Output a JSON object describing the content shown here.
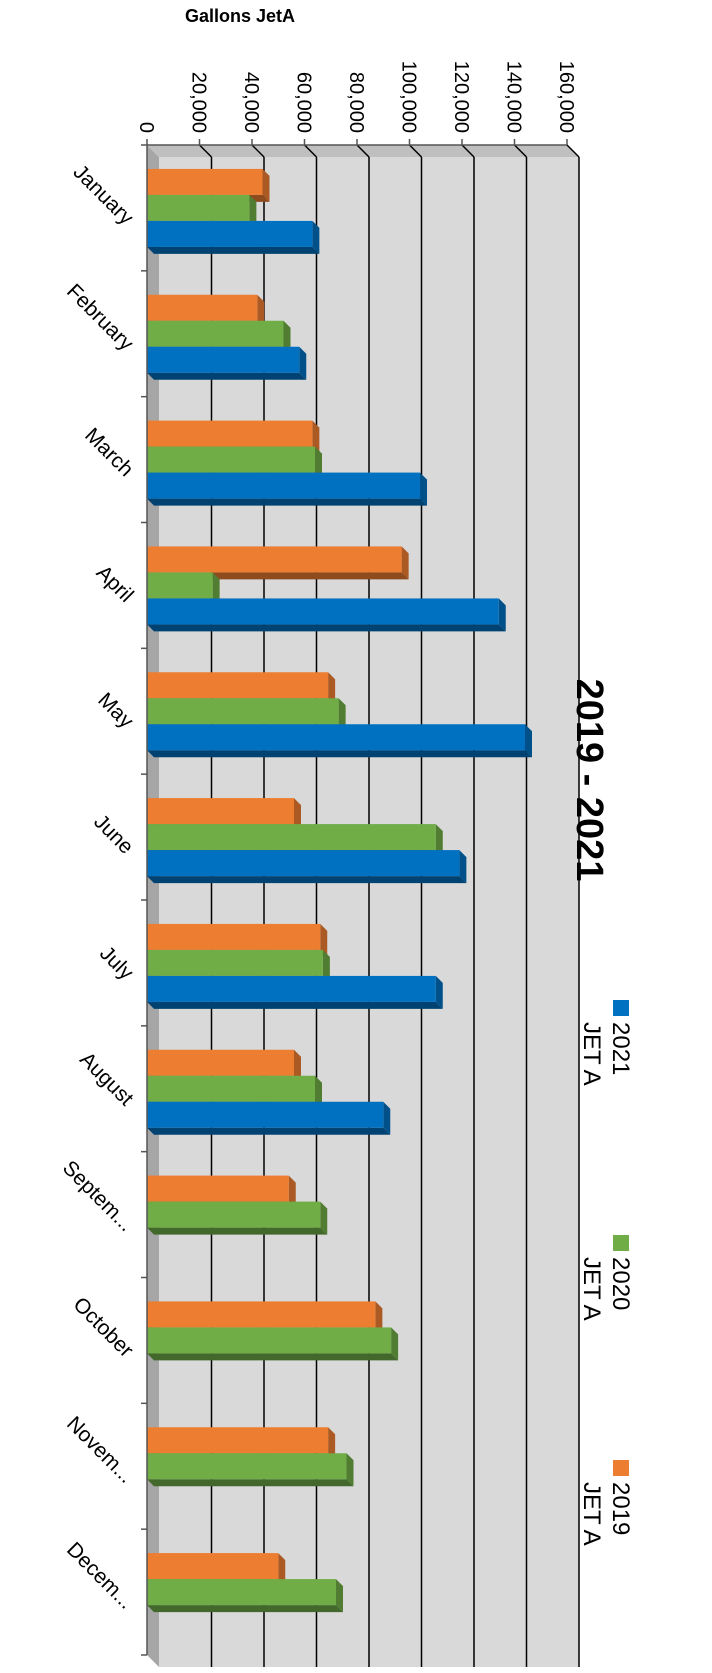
{
  "chart_data": {
    "type": "bar",
    "title": "2019 - 2021",
    "ylabel": "Gallons JetA",
    "ylim": [
      0,
      160000
    ],
    "yticks": [
      "0",
      "20,000",
      "40,000",
      "60,000",
      "80,000",
      "100,000",
      "120,000",
      "140,000",
      "160,000"
    ],
    "categories": [
      "January",
      "February",
      "March",
      "April",
      "May",
      "June",
      "July",
      "August",
      "Septem...",
      "October",
      "Novem...",
      "Decem..."
    ],
    "series": [
      {
        "name": "2019 JET A",
        "color": "#ED7D31",
        "values": [
          44000,
          42000,
          63000,
          97000,
          69000,
          56000,
          66000,
          56000,
          54000,
          87000,
          69000,
          50000
        ]
      },
      {
        "name": "2020 JET A",
        "color": "#70AD47",
        "values": [
          39000,
          52000,
          64000,
          25000,
          73000,
          110000,
          67000,
          64000,
          66000,
          93000,
          76000,
          72000
        ]
      },
      {
        "name": "2021 JET A",
        "color": "#0070C0",
        "values": [
          63000,
          58000,
          104000,
          134000,
          144000,
          119000,
          110000,
          90000,
          null,
          null,
          null,
          null
        ]
      }
    ],
    "legend_position": "top",
    "orientation": "rotated-90",
    "grid": true
  }
}
